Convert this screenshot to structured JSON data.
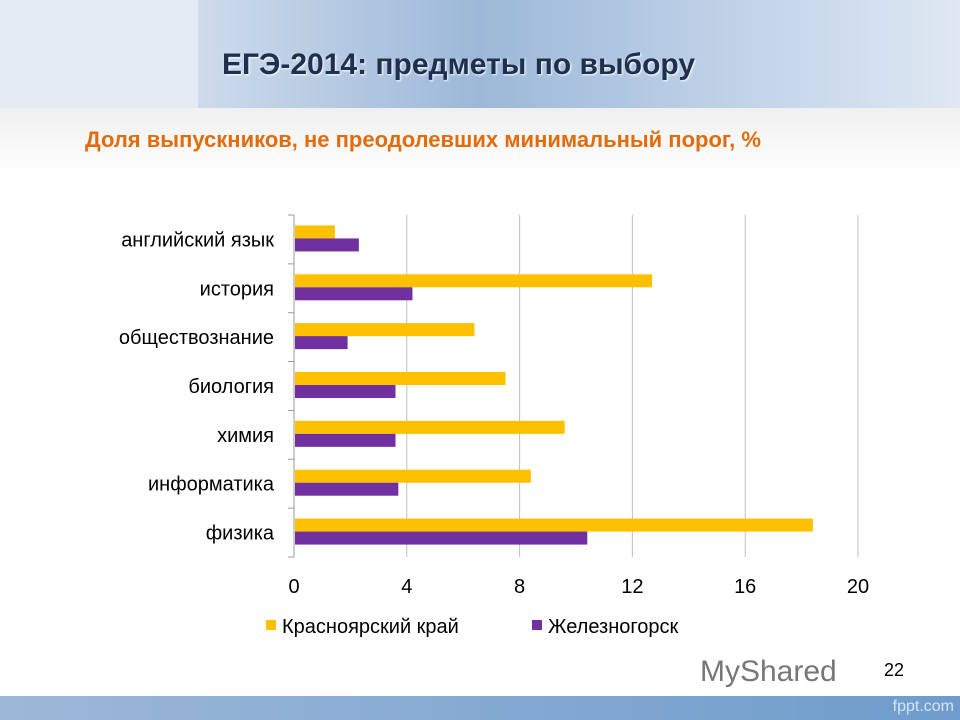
{
  "slide": {
    "title": "ЕГЭ-2014: предметы по выбору",
    "page_number": "22",
    "watermark": "MyShared",
    "footer": "fppt.com"
  },
  "chart_data": {
    "type": "bar",
    "orientation": "horizontal",
    "title": "Доля выпускников, не преодолевших минимальный порог, %",
    "categories": [
      "английский язык",
      "история",
      "обществознание",
      "биология",
      "химия",
      "информатика",
      "физика"
    ],
    "series": [
      {
        "name": "Красноярский край",
        "color": "#ffc000",
        "values": [
          1.45,
          12.7,
          6.4,
          7.5,
          9.6,
          8.4,
          18.4
        ]
      },
      {
        "name": "Железногорск",
        "color": "#7030a0",
        "values": [
          2.3,
          4.2,
          1.9,
          3.6,
          3.6,
          3.7,
          10.4
        ]
      }
    ],
    "xlim": [
      0,
      20
    ],
    "xticks": [
      "0",
      "4",
      "8",
      "12",
      "16",
      "20"
    ],
    "grid": true,
    "legend": "bottom"
  }
}
